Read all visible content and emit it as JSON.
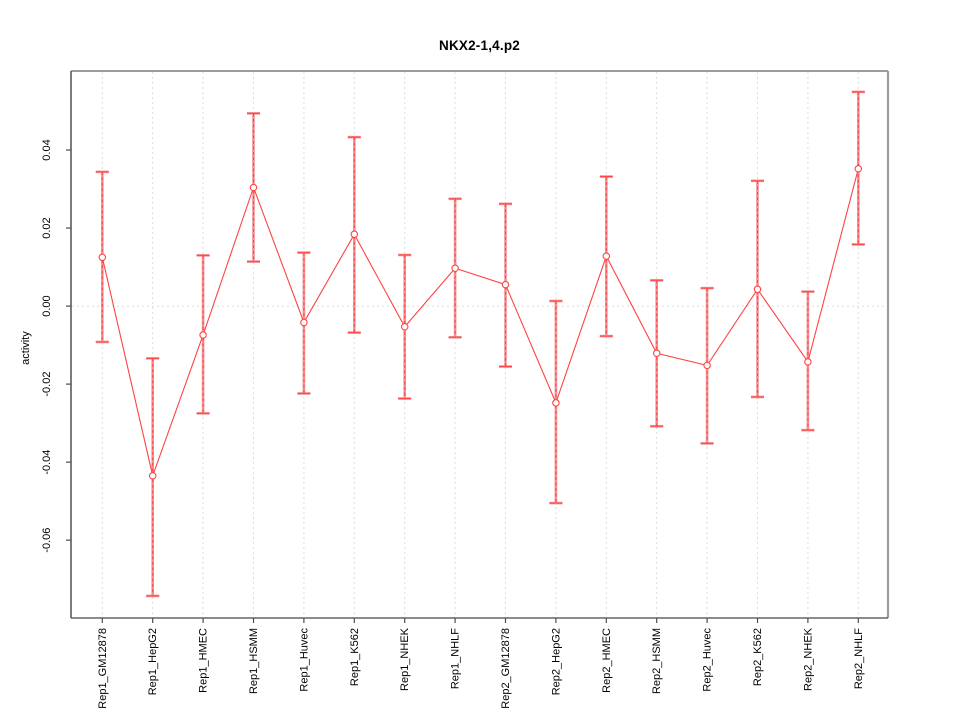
{
  "colors": {
    "series_line": "#ff4343",
    "point_fill": "#ffffff",
    "errorbar_thick": "#f49092",
    "errorbar_dash": "#ff4343",
    "gridline": "#dcdcdc",
    "zero_line": "#dcdcdc",
    "frame_light": "#9c9c9c",
    "frame_medium": "#6e6e6e",
    "frame_dark": "#474747",
    "tick": "#4d4d4d",
    "text": "#000000",
    "background": "#ffffff"
  },
  "chart_data": {
    "type": "line",
    "subtype": "points-with-error-bars",
    "title": "NKX2-1,4.p2",
    "xlabel": "",
    "ylabel": "activity",
    "ylim": [
      -0.0797,
      0.06
    ],
    "yticks": [
      0.04,
      0.02,
      0,
      -0.02,
      -0.04,
      -0.06
    ],
    "ytick_labels": [
      "0.04",
      "0.02",
      "0.00",
      "-0.02",
      "-0.04",
      "-0.06"
    ],
    "grid": "vertical dotted line at each category; horizontal dotted line at y=0; no legend",
    "legend_position": "none",
    "categories": [
      "Rep1_GM12878",
      "Rep1_HepG2",
      "Rep1_HMEC",
      "Rep1_HSMM",
      "Rep1_Huvec",
      "Rep1_K562",
      "Rep1_NHEK",
      "Rep1_NHLF",
      "Rep2_GM12878",
      "Rep2_HepG2",
      "Rep2_HMEC",
      "Rep2_HSMM",
      "Rep2_Huvec",
      "Rep2_K562",
      "Rep2_NHEK",
      "Rep2_NHLF"
    ],
    "series": [
      {
        "name": "activity",
        "marker": "open-circle",
        "values": [
          0.0125,
          -0.0435,
          -0.0074,
          0.0304,
          -0.0042,
          0.0184,
          -0.0053,
          0.0097,
          0.0055,
          -0.0248,
          0.0128,
          -0.0121,
          -0.0152,
          0.0043,
          -0.0143,
          0.0352
        ],
        "upper": [
          0.0344,
          -0.0134,
          0.013,
          0.0494,
          0.0137,
          0.0433,
          0.0131,
          0.0275,
          0.0262,
          0.0013,
          0.0332,
          0.0066,
          0.0046,
          0.0321,
          0.0037,
          0.0549
        ],
        "lower": [
          -0.0092,
          -0.0743,
          -0.0275,
          0.0114,
          -0.0224,
          -0.0068,
          -0.0237,
          -0.008,
          -0.0155,
          -0.0505,
          -0.0077,
          -0.0308,
          -0.0352,
          -0.0233,
          -0.0318,
          0.0158
        ]
      }
    ]
  }
}
